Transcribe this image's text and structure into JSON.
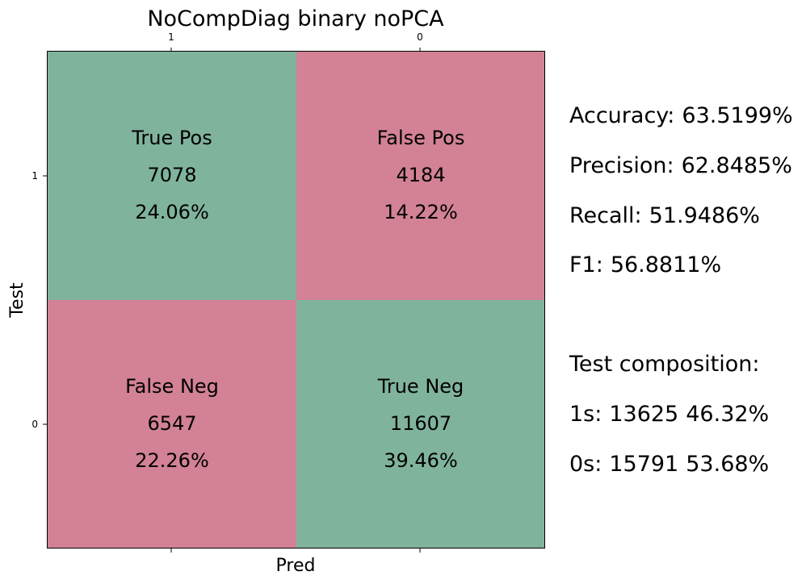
{
  "chart_data": {
    "type": "heatmap",
    "title": "NoCompDiag binary noPCA",
    "xlabel": "Pred",
    "ylabel": "Test",
    "x_tick_labels": [
      "1",
      "0"
    ],
    "y_tick_labels": [
      "1",
      "0"
    ],
    "cells": [
      {
        "row": 0,
        "col": 0,
        "label": "True Pos",
        "count": "7078",
        "percent": "24.06%",
        "color": "#80b39c"
      },
      {
        "row": 0,
        "col": 1,
        "label": "False Pos",
        "count": "4184",
        "percent": "14.22%",
        "color": "#d28294"
      },
      {
        "row": 1,
        "col": 0,
        "label": "False Neg",
        "count": "6547",
        "percent": "22.26%",
        "color": "#d28294"
      },
      {
        "row": 1,
        "col": 1,
        "label": "True Neg",
        "count": "11607",
        "percent": "39.46%",
        "color": "#80b39c"
      }
    ]
  },
  "metrics": [
    {
      "label": "Accuracy:",
      "value": "63.5199%"
    },
    {
      "label": "Precision:",
      "value": "62.8485%"
    },
    {
      "label": "Recall:",
      "value": "51.9486%"
    },
    {
      "label": "F1:",
      "value": "56.8811%"
    }
  ],
  "composition": {
    "title": "Test composition:",
    "rows": [
      {
        "label": "1s:",
        "count": "13625",
        "percent": "46.32%"
      },
      {
        "label": "0s:",
        "count": "15791",
        "percent": "53.68%"
      }
    ]
  }
}
